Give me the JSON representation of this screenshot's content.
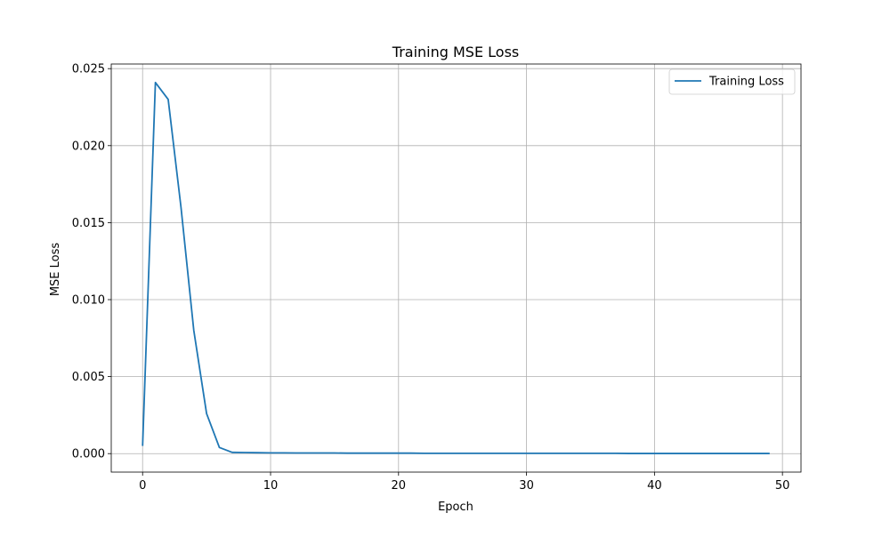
{
  "chart_data": {
    "type": "line",
    "title": "Training MSE Loss",
    "xlabel": "Epoch",
    "ylabel": "MSE Loss",
    "xlim": [
      -2.45,
      51.45
    ],
    "ylim": [
      -0.0012,
      0.0253
    ],
    "xticks": [
      0,
      10,
      20,
      30,
      40,
      50
    ],
    "xtick_labels": [
      "0",
      "10",
      "20",
      "30",
      "40",
      "50"
    ],
    "yticks": [
      0.0,
      0.005,
      0.01,
      0.015,
      0.02,
      0.025
    ],
    "ytick_labels": [
      "0.000",
      "0.005",
      "0.010",
      "0.015",
      "0.020",
      "0.025"
    ],
    "grid": true,
    "legend_position": "top-right",
    "series": [
      {
        "name": "Training Loss",
        "color": "#1f77b4",
        "x": [
          0,
          1,
          2,
          3,
          4,
          5,
          6,
          7,
          8,
          9,
          10,
          11,
          12,
          13,
          14,
          15,
          16,
          17,
          18,
          19,
          20,
          21,
          22,
          23,
          24,
          25,
          26,
          27,
          28,
          29,
          30,
          31,
          32,
          33,
          34,
          35,
          36,
          37,
          38,
          39,
          40,
          41,
          42,
          43,
          44,
          45,
          46,
          47,
          48,
          49
        ],
        "y": [
          0.0005,
          0.0241,
          0.023,
          0.016,
          0.008,
          0.0026,
          0.0004,
          8e-05,
          7e-05,
          6e-05,
          5e-05,
          5e-05,
          4e-05,
          4e-05,
          4e-05,
          4e-05,
          3e-05,
          3e-05,
          3e-05,
          3e-05,
          3e-05,
          3e-05,
          2e-05,
          2e-05,
          2e-05,
          2e-05,
          2e-05,
          2e-05,
          2e-05,
          2e-05,
          2e-05,
          2e-05,
          2e-05,
          2e-05,
          2e-05,
          2e-05,
          2e-05,
          2e-05,
          1e-05,
          1e-05,
          1e-05,
          1e-05,
          1e-05,
          1e-05,
          1e-05,
          1e-05,
          1e-05,
          1e-05,
          1e-05,
          1e-05
        ]
      }
    ]
  }
}
